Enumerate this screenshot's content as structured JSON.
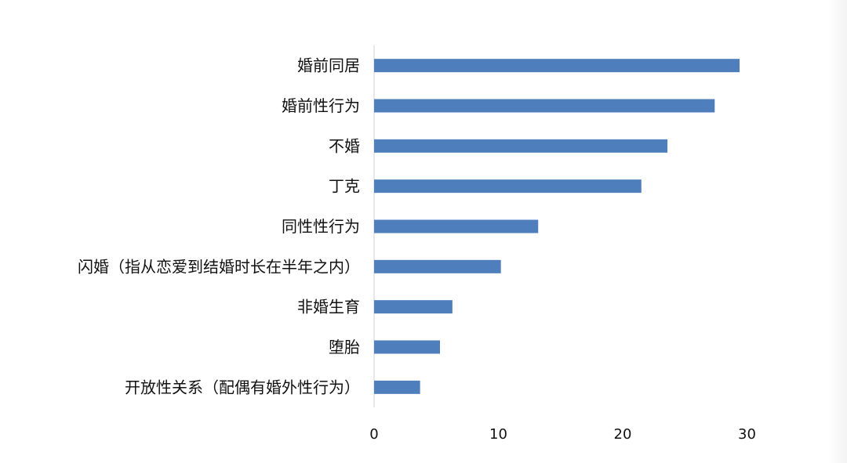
{
  "chart_data": {
    "type": "bar",
    "orientation": "horizontal",
    "title": "",
    "xlabel": "",
    "ylabel": "",
    "categories": [
      "婚前同居",
      "婚前性行为",
      "不婚",
      "丁克",
      "同性性行为",
      "闪婚（指从恋爱到结婚时长在半年之内）",
      "非婚生育",
      "堕胎",
      "开放性关系（配偶有婚外性行为）"
    ],
    "values": [
      29.4,
      27.4,
      23.6,
      21.5,
      13.2,
      10.2,
      6.3,
      5.3,
      3.7
    ],
    "xlim": [
      0,
      30
    ],
    "xticks": [
      "0",
      "10",
      "20",
      "30"
    ],
    "grid": false,
    "legend": "none",
    "bar_color": "#4f7ebd"
  }
}
